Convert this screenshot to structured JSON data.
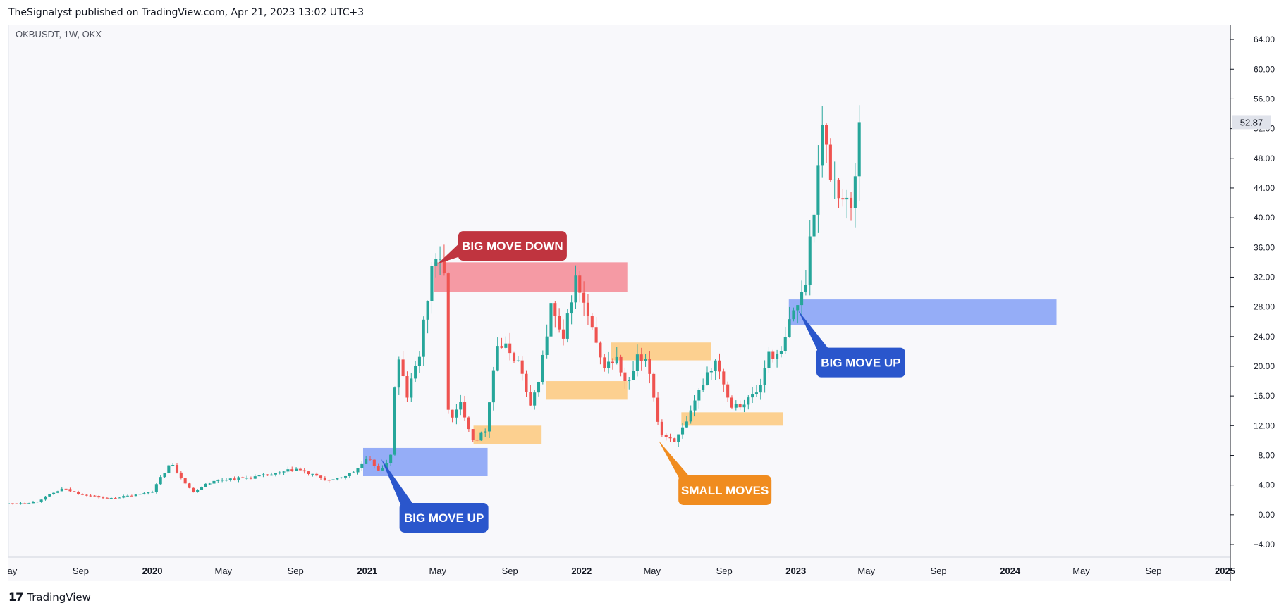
{
  "header": {
    "publisher_line": "TheSignalyst published on TradingView.com, Apr 21, 2023 13:02 UTC+3"
  },
  "footer": {
    "logo_mark": "17",
    "logo_text": "TradingView"
  },
  "colors": {
    "background": "#f8f8fb",
    "bull": "#26a69a",
    "bear": "#ef5350",
    "blue_zone": "#8fa9f7",
    "red_zone": "#f4959f",
    "orange_zone": "#fdc97d",
    "blue_callout": "#2a56cc",
    "red_callout": "#c0343f",
    "orange_callout": "#f08c1f",
    "price_tag_bg": "#e0e3eb"
  },
  "chart_data": {
    "type": "candlestick",
    "symbol_label": "OKBUSDT, 1W, OKX",
    "x_range": [
      "2019-05-01",
      "2025-01-10"
    ],
    "ylim": [
      -4,
      66
    ],
    "y_ticks": [
      "64.00",
      "60.00",
      "56.00",
      "52.00",
      "48.00",
      "44.00",
      "40.00",
      "36.00",
      "32.00",
      "28.00",
      "24.00",
      "20.00",
      "16.00",
      "12.00",
      "8.00",
      "4.00",
      "0.00",
      "−4.00"
    ],
    "y_tick_values": [
      64,
      60,
      56,
      52,
      48,
      44,
      40,
      36,
      32,
      28,
      24,
      20,
      16,
      12,
      8,
      4,
      0,
      -4
    ],
    "x_ticks": [
      {
        "label": "May",
        "date": "2019-05-01",
        "bold": false
      },
      {
        "label": "Sep",
        "date": "2019-09-01",
        "bold": false
      },
      {
        "label": "2020",
        "date": "2020-01-01",
        "bold": true
      },
      {
        "label": "May",
        "date": "2020-05-01",
        "bold": false
      },
      {
        "label": "Sep",
        "date": "2020-09-01",
        "bold": false
      },
      {
        "label": "2021",
        "date": "2021-01-01",
        "bold": true
      },
      {
        "label": "May",
        "date": "2021-05-01",
        "bold": false
      },
      {
        "label": "Sep",
        "date": "2021-09-01",
        "bold": false
      },
      {
        "label": "2022",
        "date": "2022-01-01",
        "bold": true
      },
      {
        "label": "May",
        "date": "2022-05-01",
        "bold": false
      },
      {
        "label": "Sep",
        "date": "2022-09-01",
        "bold": false
      },
      {
        "label": "2023",
        "date": "2023-01-01",
        "bold": true
      },
      {
        "label": "May",
        "date": "2023-05-01",
        "bold": false
      },
      {
        "label": "Sep",
        "date": "2023-09-01",
        "bold": false
      },
      {
        "label": "2024",
        "date": "2024-01-01",
        "bold": true
      },
      {
        "label": "May",
        "date": "2024-05-01",
        "bold": false
      },
      {
        "label": "Sep",
        "date": "2024-09-01",
        "bold": false
      },
      {
        "label": "2025",
        "date": "2025-01-01",
        "bold": true
      }
    ],
    "last_price": 52.87,
    "price_points": [
      [
        "2019-05-01",
        1.5
      ],
      [
        "2019-06-15",
        1.7
      ],
      [
        "2019-08-01",
        3.5
      ],
      [
        "2019-09-01",
        2.8
      ],
      [
        "2019-10-15",
        2.2
      ],
      [
        "2019-12-01",
        2.6
      ],
      [
        "2020-01-01",
        3.2
      ],
      [
        "2020-02-01",
        7.0
      ],
      [
        "2020-03-10",
        3.0
      ],
      [
        "2020-04-01",
        4.2
      ],
      [
        "2020-05-01",
        4.8
      ],
      [
        "2020-06-15",
        5.0
      ],
      [
        "2020-08-01",
        5.5
      ],
      [
        "2020-09-01",
        6.2
      ],
      [
        "2020-10-01",
        5.3
      ],
      [
        "2020-11-01",
        4.5
      ],
      [
        "2020-12-10",
        5.8
      ],
      [
        "2021-01-01",
        7.5
      ],
      [
        "2021-01-25",
        5.8
      ],
      [
        "2021-02-12",
        8.5
      ],
      [
        "2021-02-20",
        22.0
      ],
      [
        "2021-03-10",
        16.0
      ],
      [
        "2021-04-01",
        22.0
      ],
      [
        "2021-04-25",
        35.5
      ],
      [
        "2021-05-12",
        32.0
      ],
      [
        "2021-05-20",
        12.0
      ],
      [
        "2021-06-10",
        15.0
      ],
      [
        "2021-07-01",
        10.0
      ],
      [
        "2021-07-20",
        11.0
      ],
      [
        "2021-08-10",
        23.0
      ],
      [
        "2021-09-01",
        22.0
      ],
      [
        "2021-09-20",
        20.0
      ],
      [
        "2021-10-05",
        14.0
      ],
      [
        "2021-10-25",
        20.0
      ],
      [
        "2021-11-10",
        28.0
      ],
      [
        "2021-12-01",
        23.0
      ],
      [
        "2021-12-20",
        32.0
      ],
      [
        "2022-01-10",
        27.0
      ],
      [
        "2022-02-05",
        20.0
      ],
      [
        "2022-03-01",
        21.0
      ],
      [
        "2022-03-20",
        17.0
      ],
      [
        "2022-04-05",
        21.0
      ],
      [
        "2022-04-25",
        20.0
      ],
      [
        "2022-05-15",
        11.0
      ],
      [
        "2022-06-10",
        10.0
      ],
      [
        "2022-07-01",
        12.5
      ],
      [
        "2022-08-01",
        19.0
      ],
      [
        "2022-08-20",
        21.0
      ],
      [
        "2022-09-10",
        15.0
      ],
      [
        "2022-10-05",
        15.0
      ],
      [
        "2022-11-01",
        17.0
      ],
      [
        "2022-11-15",
        22.0
      ],
      [
        "2022-12-05",
        21.0
      ],
      [
        "2022-12-25",
        27.0
      ],
      [
        "2023-01-15",
        30.0
      ],
      [
        "2023-02-01",
        42.0
      ],
      [
        "2023-02-15",
        52.0
      ],
      [
        "2023-03-01",
        46.0
      ],
      [
        "2023-03-20",
        43.0
      ],
      [
        "2023-04-05",
        41.0
      ],
      [
        "2023-04-21",
        52.87
      ]
    ],
    "zones": [
      {
        "color": "blue",
        "from": "2020-12-25",
        "to": "2021-07-25",
        "low": 5.2,
        "high": 9.0
      },
      {
        "color": "red",
        "from": "2021-04-25",
        "to": "2022-03-20",
        "low": 30.0,
        "high": 34.0
      },
      {
        "color": "orange",
        "from": "2021-07-01",
        "to": "2021-10-25",
        "low": 9.5,
        "high": 12.0
      },
      {
        "color": "orange",
        "from": "2021-11-01",
        "to": "2022-03-20",
        "low": 15.5,
        "high": 18.0
      },
      {
        "color": "orange",
        "from": "2022-02-20",
        "to": "2022-08-10",
        "low": 20.8,
        "high": 23.2
      },
      {
        "color": "orange",
        "from": "2022-06-20",
        "to": "2022-12-10",
        "low": 12.0,
        "high": 13.8
      },
      {
        "color": "blue",
        "from": "2022-12-20",
        "to": "2024-03-20",
        "low": 25.5,
        "high": 29.0
      }
    ],
    "annotations": [
      {
        "text": "BIG MOVE DOWN",
        "color": "red",
        "anchor_date": "2021-05-01",
        "anchor_price": 33.8,
        "box_date": "2021-06-05",
        "box_price": 38.2,
        "box_w": 154
      },
      {
        "text": "BIG MOVE UP",
        "color": "blue",
        "anchor_date": "2021-01-25",
        "anchor_price": 7.5,
        "box_date": "2021-02-25",
        "box_price": 1.6,
        "box_w": 126
      },
      {
        "text": "SMALL MOVES",
        "color": "orange",
        "anchor_date": "2022-05-12",
        "anchor_price": 10.0,
        "box_date": "2022-06-15",
        "box_price": 5.3,
        "box_w": 132
      },
      {
        "text": "BIG MOVE UP",
        "color": "blue",
        "anchor_date": "2023-01-05",
        "anchor_price": 27.5,
        "box_date": "2023-02-05",
        "box_price": 22.5,
        "box_w": 126
      }
    ]
  }
}
